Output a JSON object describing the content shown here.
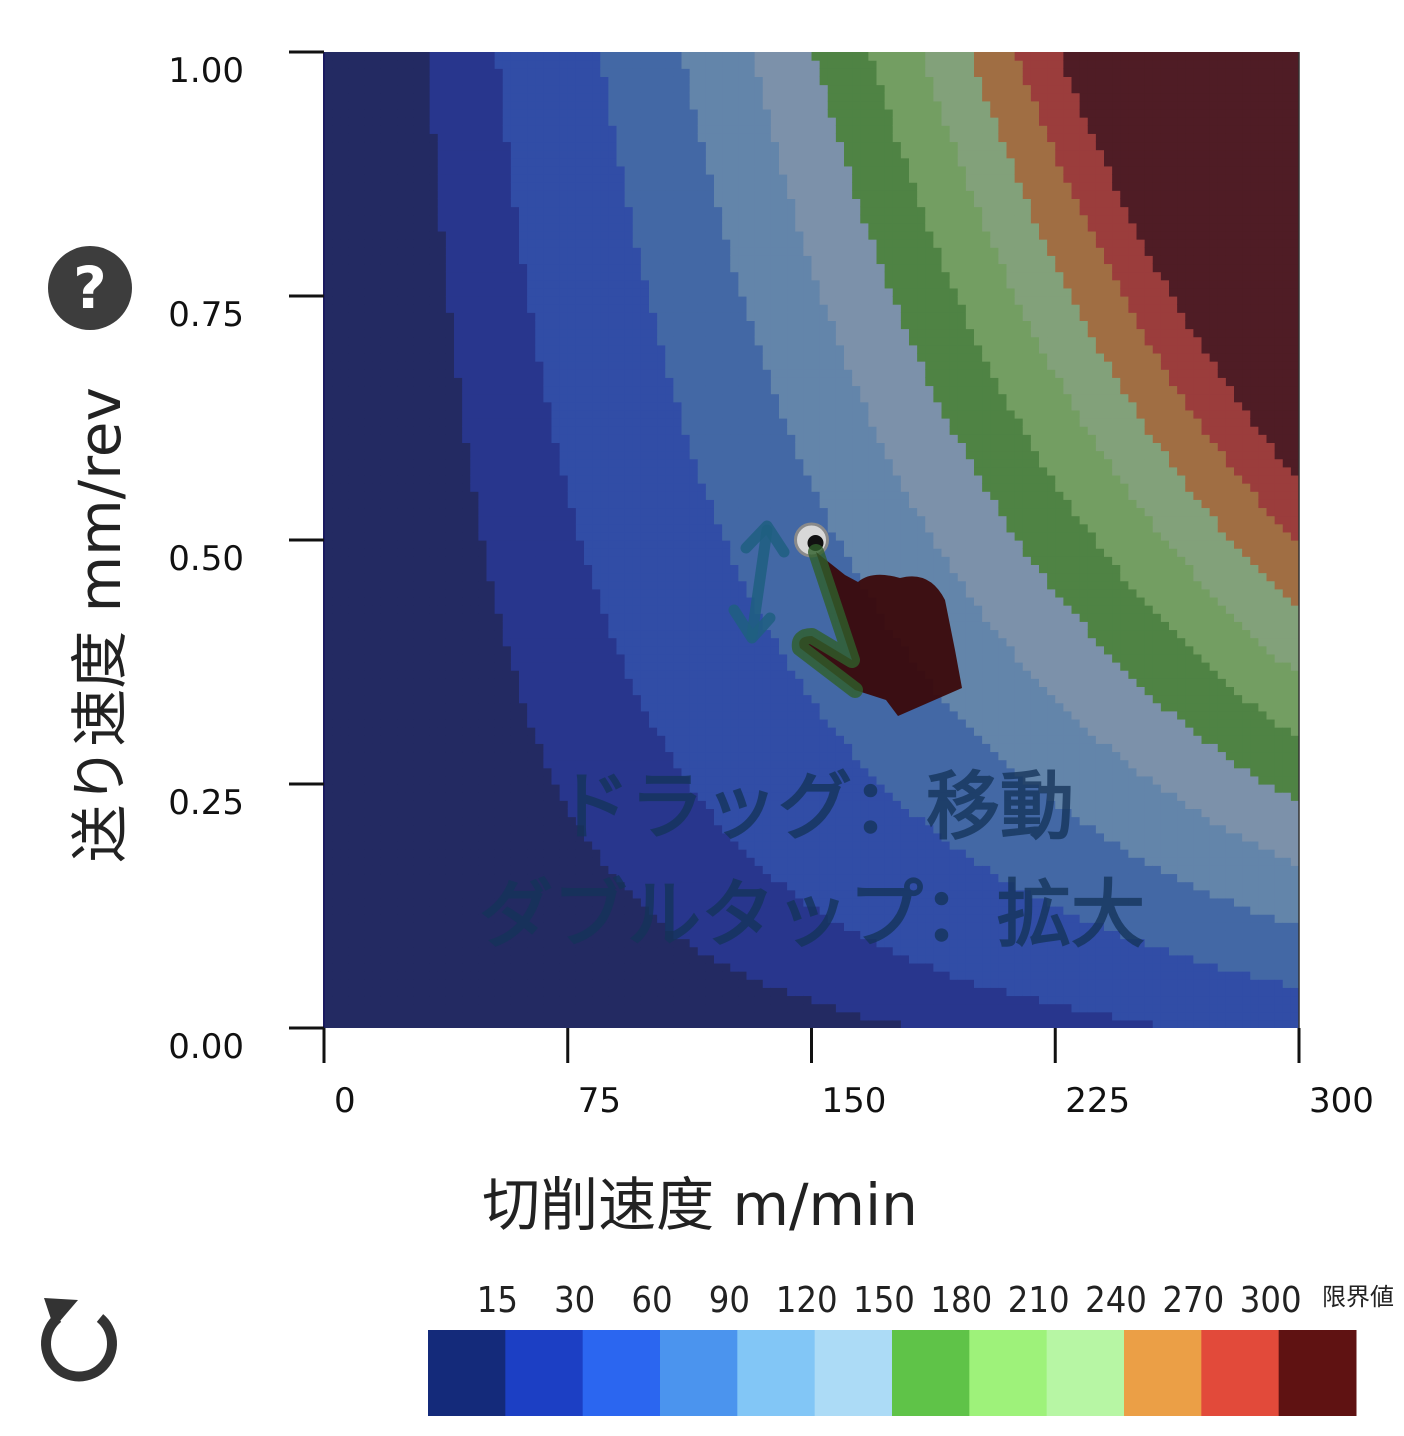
{
  "help_button_glyph": "?",
  "reset_button_icon": "rotate-arrow-icon",
  "overlay": {
    "line1": "ドラッグ：移動",
    "line2": "ダブルタップ：拡大",
    "gesture_icon": "hand-drag-vertical-icon"
  },
  "chart_data": {
    "type": "heatmap",
    "xlabel": "切削速度 m/min",
    "ylabel": "送り速度 mm/rev",
    "xlim": [
      0,
      300
    ],
    "ylim": [
      0,
      1
    ],
    "x_ticks": [
      "0",
      "75",
      "150",
      "225",
      "300"
    ],
    "y_ticks": [
      "0.00",
      "0.25",
      "0.50",
      "0.75",
      "1.00"
    ],
    "grid": false,
    "marker": {
      "x": 150,
      "y": 0.5
    },
    "colorscale": {
      "labels": [
        "15",
        "30",
        "60",
        "90",
        "120",
        "150",
        "180",
        "210",
        "240",
        "270",
        "300"
      ],
      "limit_label": "限界値",
      "colors": [
        "#142a7a",
        "#1c3fc4",
        "#2b66f0",
        "#4b94ee",
        "#82c6f6",
        "#acdbf6",
        "#5fc348",
        "#9ef27a",
        "#b7f6a4",
        "#eb9f46",
        "#e24a3a",
        "#5f1212"
      ]
    }
  },
  "colors": {
    "overlay_tint": "#3a2a40",
    "axis": "#111111"
  }
}
